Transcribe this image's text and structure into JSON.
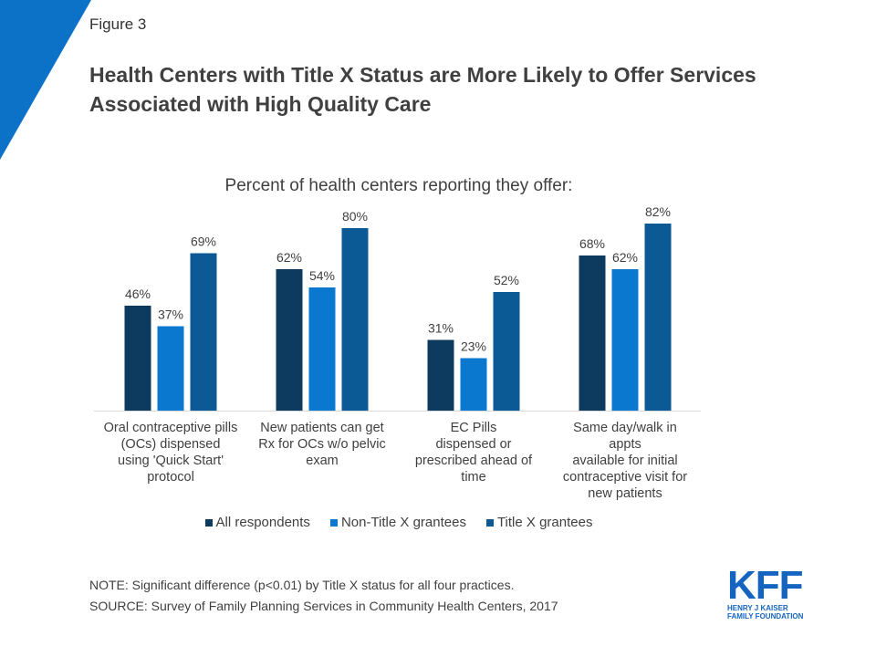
{
  "figure_label": "Figure 3",
  "title": "Health Centers with Title X Status are More Likely to Offer Services Associated with High Quality Care",
  "subtitle": "Percent of health centers reporting they offer:",
  "colors": {
    "corner": "#0b72c7",
    "all_respondents": "#0d3a5f",
    "non_title_x": "#0a78cf",
    "title_x": "#0b5a96",
    "axis": "#d9d9d9"
  },
  "legend": {
    "all_respondents": "All respondents",
    "non_title_x": "Non-Title X grantees",
    "title_x": "Title X grantees"
  },
  "note": "NOTE: Significant difference (p<0.01) by Title X status for all four practices.",
  "source": "SOURCE: Survey of Family Planning Services in Community Health Centers, 2017",
  "logo": {
    "mark": "KFF",
    "line1": "HENRY J KAISER",
    "line2": "FAMILY FOUNDATION"
  },
  "chart_data": {
    "type": "bar",
    "title": "Percent of health centers reporting they offer:",
    "categories": [
      "Oral contraceptive pills (OCs)  dispensed using 'Quick Start' protocol",
      "New patients can get Rx for OCs w/o pelvic exam",
      "EC Pills dispensed or prescribed ahead of time",
      "Same day/walk in appts available  for  initial contraceptive visit for new patients"
    ],
    "category_lines": [
      [
        "Oral contraceptive pills",
        "(OCs)  dispensed",
        "using 'Quick Start'",
        "protocol"
      ],
      [
        "New patients can get",
        "Rx for OCs w/o pelvic",
        "exam"
      ],
      [
        "EC Pills",
        "dispensed or",
        "prescribed ahead of",
        "time"
      ],
      [
        "Same day/walk in",
        "appts",
        "available  for  initial",
        "contraceptive visit for",
        "new patients"
      ]
    ],
    "series": [
      {
        "name": "All respondents",
        "values": [
          46,
          62,
          31,
          68
        ],
        "labels": [
          "46%",
          "62%",
          "31%",
          "68%"
        ]
      },
      {
        "name": "Non-Title X grantees",
        "values": [
          37,
          54,
          23,
          62
        ],
        "labels": [
          "37%",
          "54%",
          "23%",
          "62%"
        ]
      },
      {
        "name": "Title X grantees",
        "values": [
          69,
          80,
          52,
          82
        ],
        "labels": [
          "69%",
          "80%",
          "52%",
          "82%"
        ]
      }
    ],
    "ylim": [
      0,
      100
    ],
    "grid": false,
    "legend_position": "bottom"
  }
}
